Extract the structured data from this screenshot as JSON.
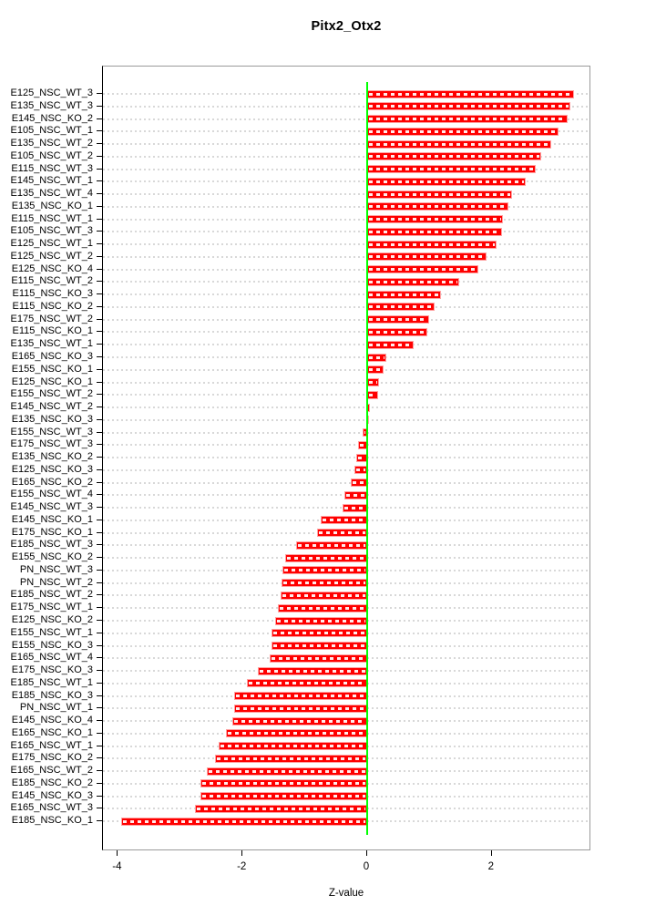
{
  "chart_data": {
    "type": "bar",
    "orientation": "horizontal",
    "title": "Pitx2_Otx2",
    "xlabel": "Z-value",
    "x_ticks": [
      -4,
      -2,
      0,
      2
    ],
    "xlim": [
      -4.24,
      3.6
    ],
    "grid": "dotted-horizontal-per-category",
    "legend": "none",
    "bar_color": "#FF0000",
    "bar_edge_color": "#FFA2A2",
    "zero_line_color": "#00FF00",
    "grid_color": "#D8D8D8",
    "box_color": "#9A9A9A",
    "categories": [
      "E125_NSC_WT_3",
      "E135_NSC_WT_3",
      "E145_NSC_KO_2",
      "E105_NSC_WT_1",
      "E135_NSC_WT_2",
      "E105_NSC_WT_2",
      "E115_NSC_WT_3",
      "E145_NSC_WT_1",
      "E135_NSC_WT_4",
      "E135_NSC_KO_1",
      "E115_NSC_WT_1",
      "E105_NSC_WT_3",
      "E125_NSC_WT_1",
      "E125_NSC_WT_2",
      "E125_NSC_KO_4",
      "E115_NSC_WT_2",
      "E115_NSC_KO_3",
      "E115_NSC_KO_2",
      "E175_NSC_WT_2",
      "E115_NSC_KO_1",
      "E135_NSC_WT_1",
      "E165_NSC_KO_3",
      "E155_NSC_KO_1",
      "E125_NSC_KO_1",
      "E155_NSC_WT_2",
      "E145_NSC_WT_2",
      "E135_NSC_KO_3",
      "E155_NSC_WT_3",
      "E175_NSC_WT_3",
      "E135_NSC_KO_2",
      "E125_NSC_KO_3",
      "E165_NSC_KO_2",
      "E155_NSC_WT_4",
      "E145_NSC_WT_3",
      "E145_NSC_KO_1",
      "E175_NSC_KO_1",
      "E185_NSC_WT_3",
      "E155_NSC_KO_2",
      "PN_NSC_WT_3",
      "PN_NSC_WT_2",
      "E185_NSC_WT_2",
      "E175_NSC_WT_1",
      "E125_NSC_KO_2",
      "E155_NSC_WT_1",
      "E155_NSC_KO_3",
      "E165_NSC_WT_4",
      "E175_NSC_KO_3",
      "E185_NSC_WT_1",
      "E185_NSC_KO_3",
      "PN_NSC_WT_1",
      "E145_NSC_KO_4",
      "E165_NSC_KO_1",
      "E165_NSC_WT_1",
      "E175_NSC_KO_2",
      "E165_NSC_WT_2",
      "E185_NSC_KO_2",
      "E145_NSC_KO_3",
      "E165_NSC_WT_3",
      "E185_NSC_KO_1"
    ],
    "values": [
      3.32,
      3.26,
      3.21,
      3.07,
      2.96,
      2.79,
      2.7,
      2.55,
      2.32,
      2.26,
      2.18,
      2.17,
      2.08,
      1.92,
      1.78,
      1.48,
      1.18,
      1.08,
      0.99,
      0.97,
      0.75,
      0.3,
      0.26,
      0.19,
      0.18,
      0.05,
      0.01,
      -0.07,
      -0.15,
      -0.17,
      -0.21,
      -0.26,
      -0.36,
      -0.39,
      -0.75,
      -0.8,
      -1.14,
      -1.31,
      -1.36,
      -1.37,
      -1.39,
      -1.43,
      -1.47,
      -1.53,
      -1.54,
      -1.56,
      -1.76,
      -1.93,
      -2.13,
      -2.14,
      -2.16,
      -2.26,
      -2.38,
      -2.44,
      -2.58,
      -2.67,
      -2.68,
      -2.76,
      -3.95
    ]
  }
}
